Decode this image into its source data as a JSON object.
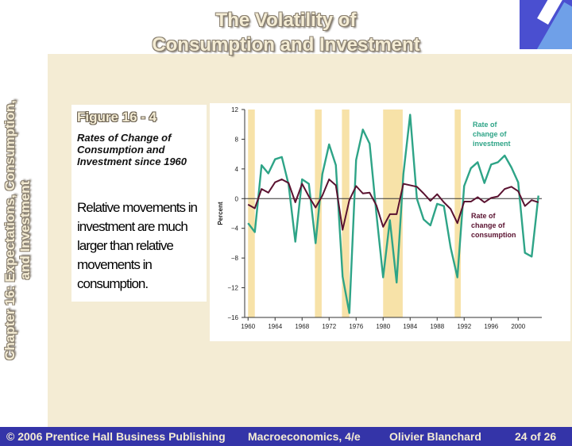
{
  "slide": {
    "title_line1": "The Volatility of",
    "title_line2": "Consumption and Investment",
    "vertical_line1": "Chapter 16: Expectations, Consumption,",
    "vertical_line2": "and Investment"
  },
  "figure": {
    "label": "Figure 16 - 4",
    "subtitle": "Rates of Change of Consumption and Investment since 1960",
    "description": "Relative movements in investment are much larger than relative movements in consumption."
  },
  "footer": {
    "copyright": "© 2006 Prentice Hall Business Publishing",
    "book": "Macroeconomics, 4/e",
    "author": "Olivier Blanchard",
    "page": "24 of 26"
  },
  "colors": {
    "investment": "#2ea487",
    "consumption": "#5a1230",
    "recession": "#f7e2a8",
    "footer_bg": "#3434a8"
  },
  "chart_data": {
    "type": "line",
    "ylabel": "Percent",
    "ylim": [
      -16,
      12
    ],
    "xlim": [
      1959.5,
      2003.5
    ],
    "x_ticks": [
      "1960",
      "1964",
      "1968",
      "1972",
      "1976",
      "1980",
      "1984",
      "1988",
      "1992",
      "1996",
      "2000"
    ],
    "y_ticks": [
      "12",
      "8",
      "4",
      "0",
      "−4",
      "−8",
      "−12",
      "−16"
    ],
    "recession_bands": [
      [
        1960.0,
        1961.0
      ],
      [
        1969.9,
        1970.9
      ],
      [
        1973.9,
        1975.0
      ],
      [
        1980.0,
        1982.9
      ],
      [
        1990.6,
        1991.5
      ]
    ],
    "x": [
      1960,
      1961,
      1962,
      1963,
      1964,
      1965,
      1966,
      1967,
      1968,
      1969,
      1970,
      1971,
      1972,
      1973,
      1974,
      1975,
      1976,
      1977,
      1978,
      1979,
      1980,
      1981,
      1982,
      1983,
      1984,
      1985,
      1986,
      1987,
      1988,
      1989,
      1990,
      1991,
      1992,
      1993,
      1994,
      1995,
      1996,
      1997,
      1998,
      1999,
      2000,
      2001,
      2002,
      2003
    ],
    "series": [
      {
        "name": "Rate of change of investment",
        "label_line1": "Rate of",
        "label_line2": "change of",
        "label_line3": "investment",
        "values": [
          -3.3,
          -4.5,
          4.5,
          3.4,
          5.3,
          5.6,
          1.9,
          -5.8,
          2.6,
          2.0,
          -6.0,
          3.3,
          7.3,
          4.5,
          -10.5,
          -15.4,
          5.2,
          9.3,
          7.4,
          -2.0,
          -10.6,
          -2.9,
          -11.3,
          3.3,
          11.3,
          0.0,
          -2.8,
          -3.6,
          -0.7,
          -1.0,
          -6.6,
          -10.6,
          1.7,
          4.1,
          4.9,
          2.1,
          4.6,
          4.9,
          5.8,
          4.2,
          2.2,
          -7.3,
          -7.8,
          0.4
        ]
      },
      {
        "name": "Rate of change of consumption",
        "label_line1": "Rate of",
        "label_line2": "change of",
        "label_line3": "consumption",
        "values": [
          -0.8,
          -1.3,
          1.3,
          0.8,
          2.2,
          2.6,
          2.1,
          -0.5,
          2.0,
          0.3,
          -1.2,
          0.4,
          2.6,
          1.8,
          -4.2,
          -0.2,
          1.7,
          0.7,
          0.8,
          -0.9,
          -3.8,
          -2.1,
          -2.1,
          2.0,
          1.8,
          1.6,
          0.7,
          -0.3,
          0.6,
          -0.5,
          -1.4,
          -3.3,
          -0.4,
          -0.4,
          0.2,
          -0.5,
          0.1,
          0.3,
          1.3,
          1.6,
          1.0,
          -1.0,
          -0.2,
          -0.5
        ]
      }
    ],
    "grid": false
  }
}
